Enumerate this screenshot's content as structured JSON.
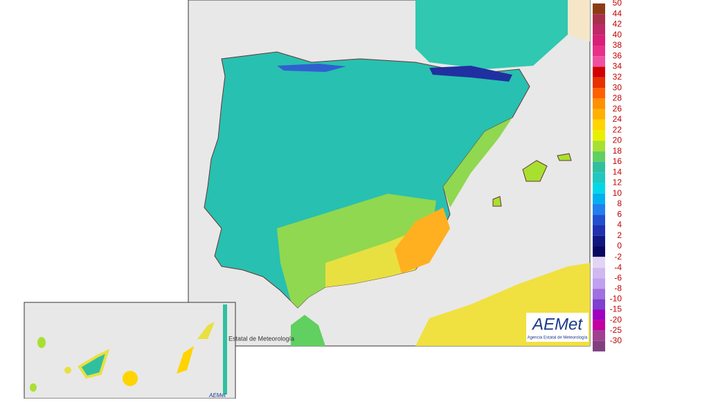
{
  "map": {
    "legend": {
      "positive": [
        {
          "label": "50",
          "color": "#8c3c14"
        },
        {
          "label": "44",
          "color": "#a8304a"
        },
        {
          "label": "42",
          "color": "#c02868"
        },
        {
          "label": "40",
          "color": "#d82078"
        },
        {
          "label": "38",
          "color": "#e83088"
        },
        {
          "label": "36",
          "color": "#f050a0"
        },
        {
          "label": "34",
          "color": "#d00000"
        },
        {
          "label": "32",
          "color": "#e83000"
        },
        {
          "label": "30",
          "color": "#ff6000"
        },
        {
          "label": "28",
          "color": "#ff9000"
        },
        {
          "label": "26",
          "color": "#ffb000"
        },
        {
          "label": "24",
          "color": "#ffd400"
        },
        {
          "label": "22",
          "color": "#e8f000"
        },
        {
          "label": "20",
          "color": "#a8e030"
        },
        {
          "label": "18",
          "color": "#60d060"
        },
        {
          "label": "16",
          "color": "#30c0a0"
        },
        {
          "label": "14",
          "color": "#20c8c0"
        },
        {
          "label": "12",
          "color": "#00d8e8"
        },
        {
          "label": "10",
          "color": "#00b0f0"
        },
        {
          "label": "8",
          "color": "#2080f0"
        },
        {
          "label": "6",
          "color": "#2050d0"
        },
        {
          "label": "4",
          "color": "#2030b0"
        },
        {
          "label": "2",
          "color": "#101880"
        },
        {
          "label": "0",
          "color": "#080860"
        }
      ],
      "negative": [
        {
          "label": "-2",
          "color": "#e4d4f4"
        },
        {
          "label": "-4",
          "color": "#d0b8f0"
        },
        {
          "label": "-6",
          "color": "#c0a0f0"
        },
        {
          "label": "-8",
          "color": "#a070e0"
        },
        {
          "label": "-10",
          "color": "#8040d0"
        },
        {
          "label": "-15",
          "color": "#a000c0"
        },
        {
          "label": "-20",
          "color": "#c000a0"
        },
        {
          "label": "-25",
          "color": "#a04090"
        },
        {
          "label": "-30",
          "color": "#804080"
        }
      ]
    },
    "logo": {
      "name": "AEMet",
      "subtitle": "Agencia Estatal de Meteorología"
    },
    "inset": {
      "caption": "Estatal de Meteorología",
      "logo": "AEMet"
    }
  }
}
